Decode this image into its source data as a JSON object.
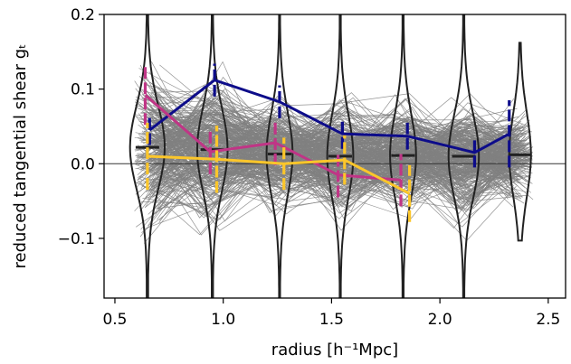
{
  "chart_data": {
    "type": "line",
    "xlabel": "radius [h⁻¹Mpc]",
    "ylabel": "reduced tangential shear gₜ",
    "xlim": [
      0.45,
      2.58
    ],
    "ylim": [
      -0.18,
      0.2
    ],
    "x_ticks": [
      0.5,
      1.0,
      1.5,
      2.0,
      2.5
    ],
    "x_tick_labels": [
      "0.5",
      "1.0",
      "1.5",
      "2.0",
      "2.5"
    ],
    "y_ticks": [
      -0.1,
      0.0,
      0.1,
      0.2
    ],
    "y_tick_labels": [
      "−0.1",
      "0.0",
      "0.1",
      "0.2"
    ],
    "grid": false,
    "legend": "none",
    "zero_line": 0.0,
    "colors": {
      "background_lines": "#808080",
      "violin": "#222222",
      "median": "#222222",
      "navy": "#0d0c8a",
      "magenta": "#c03586",
      "yellow": "#fcc62a"
    },
    "violins": [
      {
        "x": 0.65,
        "median": 0.022,
        "ymin": -0.18,
        "ymax": 0.2,
        "width": 0.08
      },
      {
        "x": 0.95,
        "median": 0.019,
        "ymin": -0.18,
        "ymax": 0.2,
        "width": 0.07
      },
      {
        "x": 1.26,
        "median": 0.013,
        "ymin": -0.18,
        "ymax": 0.2,
        "width": 0.06
      },
      {
        "x": 1.54,
        "median": 0.01,
        "ymin": -0.18,
        "ymax": 0.2,
        "width": 0.06
      },
      {
        "x": 1.83,
        "median": 0.011,
        "ymin": -0.18,
        "ymax": 0.2,
        "width": 0.06
      },
      {
        "x": 2.11,
        "median": 0.01,
        "ymin": -0.18,
        "ymax": 0.2,
        "width": 0.07
      },
      {
        "x": 2.37,
        "median": 0.012,
        "ymin": -0.103,
        "ymax": 0.162,
        "width": 0.05
      }
    ],
    "series": [
      {
        "color": "#0d0c8a",
        "x": [
          0.66,
          0.96,
          1.26,
          1.55,
          1.85,
          2.16,
          2.32
        ],
        "y": [
          0.045,
          0.112,
          0.083,
          0.04,
          0.037,
          0.015,
          0.04
        ],
        "err": [
          0.02,
          0.022,
          0.022,
          0.02,
          0.018,
          0.02,
          0.045
        ]
      },
      {
        "color": "#c03586",
        "x": [
          0.64,
          0.94,
          1.24,
          1.53,
          1.82
        ],
        "y": [
          0.092,
          0.016,
          0.028,
          -0.015,
          -0.022
        ],
        "err": [
          0.04,
          0.03,
          0.03,
          0.03,
          0.035
        ]
      },
      {
        "color": "#fcc62a",
        "x": [
          0.65,
          0.97,
          1.28,
          1.56,
          1.86
        ],
        "y": [
          0.01,
          0.006,
          0.0,
          0.005,
          -0.04
        ],
        "err": [
          0.045,
          0.045,
          0.035,
          0.033,
          0.038
        ]
      }
    ]
  }
}
